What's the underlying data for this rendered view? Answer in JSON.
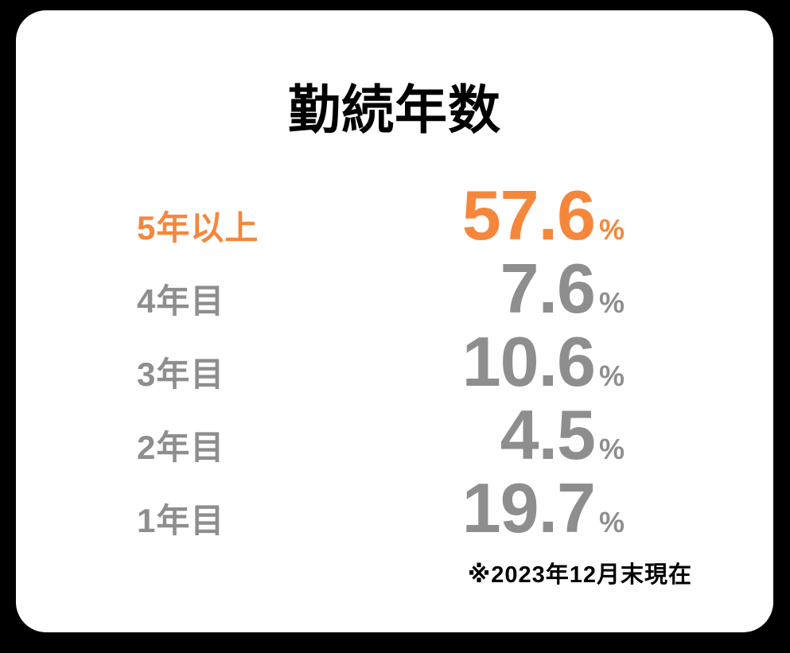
{
  "title": "勤続年数",
  "footnote": "※2023年12月末現在",
  "colors": {
    "page_background": "#000000",
    "card_background": "#ffffff",
    "accent_orange": "#f5873c",
    "muted_gray": "#8e8e8e",
    "text_black": "#000000"
  },
  "chart_data": {
    "type": "table",
    "title": "勤続年数",
    "categories": [
      "5年以上",
      "4年目",
      "3年目",
      "2年目",
      "1年目"
    ],
    "values": [
      57.6,
      7.6,
      10.6,
      4.5,
      19.7
    ],
    "unit": "%",
    "note": "※2023年12月末現在",
    "highlight_category": "5年以上",
    "highlight_color": "#f5873c",
    "default_color": "#8e8e8e",
    "legend": "off",
    "grid": "off",
    "value_alignment": "right"
  }
}
